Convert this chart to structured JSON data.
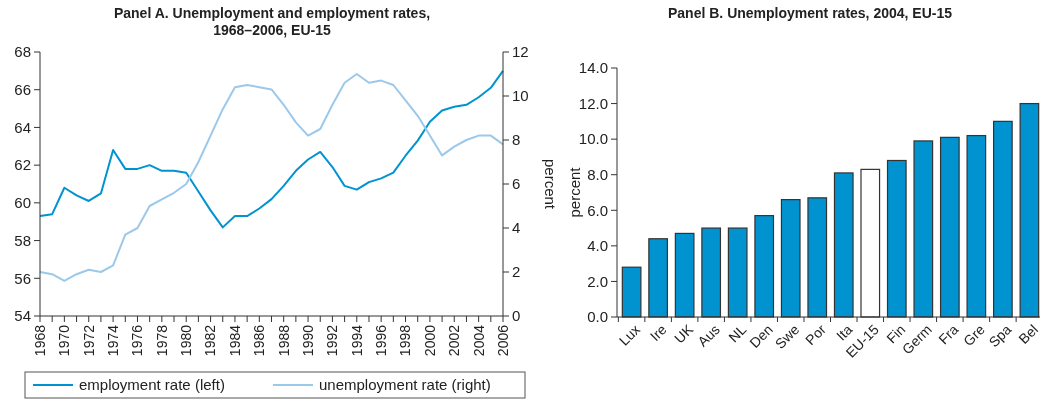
{
  "chart_data": [
    {
      "type": "line",
      "title": "Panel A. Unemployment and employment rates,\n1968–2006, EU-15",
      "y2label": "percent",
      "legend": "bottom",
      "marker": "none",
      "line_style": "solid",
      "xlim": [
        1968,
        2006
      ],
      "xticks": [
        1968,
        {
          "value": 1969,
          "label": null
        },
        1970,
        {
          "value": 1971,
          "label": null
        },
        1972,
        {
          "value": 1973,
          "label": null
        },
        1974,
        {
          "value": 1975,
          "label": null
        },
        1976,
        {
          "value": 1977,
          "label": null
        },
        1978,
        {
          "value": 1979,
          "label": null
        },
        1980,
        {
          "value": 1981,
          "label": null
        },
        1982,
        {
          "value": 1983,
          "label": null
        },
        1984,
        {
          "value": 1985,
          "label": null
        },
        1986,
        {
          "value": 1987,
          "label": null
        },
        1988,
        {
          "value": 1989,
          "label": null
        },
        1990,
        {
          "value": 1991,
          "label": null
        },
        1992,
        {
          "value": 1993,
          "label": null
        },
        1994,
        {
          "value": 1995,
          "label": null
        },
        1996,
        {
          "value": 1997,
          "label": null
        },
        1998,
        {
          "value": 1999,
          "label": null
        },
        2000,
        {
          "value": 2001,
          "label": null
        },
        2002,
        {
          "value": 2003,
          "label": null
        },
        2004,
        {
          "value": 2005,
          "label": null
        },
        2006
      ],
      "ylim": [
        54,
        68
      ],
      "yticks": [
        54,
        56,
        58,
        60,
        62,
        64,
        66,
        68
      ],
      "y2lim": [
        0,
        12
      ],
      "y2ticks": [
        0,
        2,
        4,
        6,
        8,
        10,
        12
      ],
      "x": [
        1968,
        1969,
        1970,
        1971,
        1972,
        1973,
        1974,
        1975,
        1976,
        1977,
        1978,
        1979,
        1980,
        1981,
        1982,
        1983,
        1984,
        1985,
        1986,
        1987,
        1988,
        1989,
        1990,
        1991,
        1992,
        1993,
        1994,
        1995,
        1996,
        1997,
        1998,
        1999,
        2000,
        2001,
        2002,
        2003,
        2004,
        2005,
        2006
      ],
      "series": [
        {
          "name": "employment rate (left)",
          "color": "#0093d0",
          "values": [
            59.3,
            59.4,
            60.8,
            60.4,
            60.1,
            60.5,
            62.8,
            61.8,
            61.8,
            62.0,
            61.7,
            61.7,
            61.6,
            60.6,
            59.6,
            58.7,
            59.3,
            59.3,
            59.7,
            60.2,
            60.9,
            61.7,
            62.3,
            62.7,
            61.9,
            60.9,
            60.7,
            61.1,
            61.3,
            61.6,
            62.5,
            63.3,
            64.3,
            64.9,
            65.1,
            65.2,
            65.6,
            66.1,
            67.0
          ]
        },
        {
          "name": "unemployment rate (right)",
          "color": "#9cc8ea",
          "axis": "y2",
          "values": [
            2.0,
            1.9,
            1.6,
            1.9,
            2.1,
            2.0,
            2.3,
            3.7,
            4.0,
            5.0,
            5.3,
            5.6,
            6.0,
            7.0,
            8.2,
            9.4,
            10.4,
            10.5,
            10.4,
            10.3,
            9.6,
            8.8,
            8.2,
            8.5,
            9.6,
            10.6,
            11.0,
            10.6,
            10.7,
            10.5,
            9.8,
            9.1,
            8.2,
            7.3,
            7.7,
            8.0,
            8.2,
            8.2,
            7.8
          ]
        }
      ]
    },
    {
      "type": "bar",
      "title": "Panel B. Unemployment rates, 2004, EU-15",
      "ylabel": "percent",
      "categories": [
        "Lux",
        "Ire",
        "UK",
        "Aus",
        "NL",
        "Den",
        "Swe",
        "Por",
        "Ita",
        "EU-15",
        "Fin",
        "Germ",
        "Fra",
        "Gre",
        "Spa",
        "Bel"
      ],
      "values": [
        2.8,
        4.4,
        4.7,
        5.0,
        5.0,
        5.7,
        6.6,
        6.7,
        8.1,
        8.3,
        8.8,
        9.9,
        10.1,
        10.2,
        11.0,
        12.0
      ],
      "colors": [
        "#0093d0",
        "#0093d0",
        "#0093d0",
        "#0093d0",
        "#0093d0",
        "#0093d0",
        "#0093d0",
        "#0093d0",
        "#0093d0",
        "#ffffff",
        "#0093d0",
        "#0093d0",
        "#0093d0",
        "#0093d0",
        "#0093d0",
        "#0093d0"
      ],
      "ylim": [
        0,
        14
      ],
      "yticks": [
        {
          "value": 0,
          "label": "0.0"
        },
        {
          "value": 2,
          "label": "2.0"
        },
        {
          "value": 4,
          "label": "4.0"
        },
        {
          "value": 6,
          "label": "6.0"
        },
        {
          "value": 8,
          "label": "8.0"
        },
        {
          "value": 10,
          "label": "10.0"
        },
        {
          "value": 12,
          "label": "12.0"
        },
        {
          "value": 14,
          "label": "14.0"
        }
      ]
    }
  ]
}
